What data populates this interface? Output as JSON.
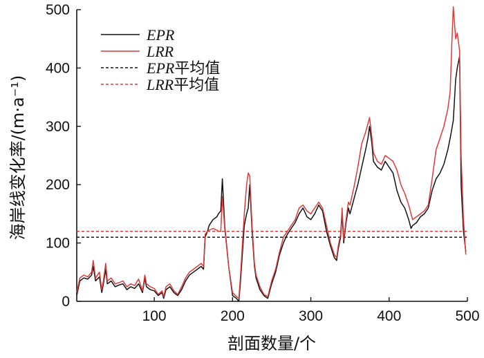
{
  "chart_data": {
    "type": "line",
    "xlabel": "剖面数量/个",
    "ylabel": "海岸线变化率/(m·a⁻¹)",
    "xlim": [
      1,
      500
    ],
    "ylim": [
      0,
      500
    ],
    "xticks": [
      "100",
      "200",
      "300",
      "400",
      "500"
    ],
    "yticks": [
      "0",
      "100",
      "200",
      "300",
      "400",
      "500"
    ],
    "legend_position": "top-left",
    "grid": false,
    "series": [
      {
        "name": "EPR",
        "style": "solid",
        "color": "#111111",
        "x": [
          1,
          5,
          10,
          15,
          20,
          22,
          25,
          30,
          33,
          35,
          38,
          40,
          45,
          50,
          55,
          60,
          65,
          70,
          75,
          80,
          85,
          88,
          90,
          95,
          100,
          105,
          110,
          112,
          115,
          120,
          125,
          130,
          135,
          140,
          145,
          150,
          155,
          160,
          163,
          165,
          168,
          170,
          175,
          180,
          182,
          185,
          187,
          190,
          195,
          200,
          205,
          208,
          210,
          215,
          218,
          220,
          222,
          225,
          228,
          230,
          235,
          240,
          245,
          250,
          255,
          260,
          265,
          270,
          275,
          280,
          285,
          290,
          295,
          300,
          305,
          310,
          315,
          320,
          325,
          330,
          333,
          335,
          338,
          340,
          342,
          345,
          348,
          350,
          355,
          360,
          365,
          370,
          373,
          375,
          378,
          380,
          385,
          390,
          395,
          400,
          405,
          410,
          415,
          420,
          425,
          428,
          430,
          435,
          440,
          445,
          450,
          455,
          460,
          465,
          470,
          475,
          478,
          480,
          482,
          485,
          487,
          490,
          492,
          495,
          498
        ],
        "y": [
          10,
          35,
          40,
          38,
          45,
          60,
          35,
          42,
          15,
          30,
          55,
          30,
          35,
          25,
          28,
          30,
          20,
          25,
          22,
          30,
          15,
          40,
          25,
          20,
          18,
          10,
          15,
          5,
          20,
          25,
          15,
          10,
          20,
          35,
          45,
          50,
          55,
          60,
          55,
          110,
          120,
          130,
          140,
          145,
          150,
          155,
          210,
          130,
          60,
          10,
          5,
          0,
          30,
          130,
          150,
          160,
          200,
          120,
          60,
          40,
          20,
          10,
          5,
          30,
          50,
          80,
          100,
          115,
          125,
          135,
          150,
          160,
          145,
          140,
          150,
          165,
          155,
          120,
          95,
          75,
          70,
          90,
          110,
          150,
          100,
          135,
          160,
          150,
          175,
          200,
          230,
          260,
          280,
          300,
          270,
          240,
          230,
          225,
          240,
          230,
          220,
          190,
          170,
          160,
          140,
          125,
          130,
          135,
          145,
          150,
          160,
          190,
          210,
          220,
          235,
          260,
          280,
          295,
          310,
          380,
          400,
          420,
          200,
          120,
          85
        ]
      },
      {
        "name": "LRR",
        "style": "solid",
        "color": "#d93a3a",
        "x": [
          1,
          5,
          10,
          15,
          20,
          22,
          25,
          30,
          33,
          35,
          38,
          40,
          45,
          50,
          55,
          60,
          65,
          70,
          75,
          80,
          85,
          88,
          90,
          95,
          100,
          105,
          110,
          112,
          115,
          120,
          125,
          130,
          135,
          140,
          145,
          150,
          155,
          160,
          163,
          165,
          168,
          170,
          175,
          180,
          182,
          185,
          187,
          190,
          195,
          200,
          205,
          208,
          210,
          215,
          218,
          220,
          222,
          225,
          228,
          230,
          235,
          240,
          245,
          250,
          255,
          260,
          265,
          270,
          275,
          280,
          285,
          290,
          295,
          300,
          305,
          310,
          315,
          320,
          325,
          330,
          333,
          335,
          338,
          340,
          342,
          345,
          348,
          350,
          355,
          360,
          365,
          370,
          373,
          375,
          378,
          380,
          385,
          390,
          395,
          400,
          405,
          410,
          415,
          420,
          425,
          428,
          430,
          435,
          440,
          445,
          450,
          455,
          460,
          465,
          470,
          475,
          478,
          480,
          482,
          485,
          487,
          490,
          492,
          495,
          498
        ],
        "y": [
          15,
          40,
          45,
          42,
          50,
          70,
          40,
          50,
          20,
          35,
          65,
          35,
          40,
          30,
          32,
          35,
          25,
          30,
          27,
          38,
          18,
          45,
          30,
          25,
          22,
          12,
          18,
          8,
          25,
          30,
          18,
          12,
          25,
          40,
          50,
          55,
          60,
          65,
          60,
          115,
          120,
          122,
          125,
          122,
          120,
          120,
          180,
          125,
          60,
          15,
          8,
          5,
          40,
          150,
          200,
          220,
          215,
          130,
          65,
          45,
          25,
          12,
          8,
          35,
          55,
          85,
          110,
          120,
          130,
          140,
          160,
          165,
          155,
          150,
          160,
          170,
          160,
          130,
          100,
          80,
          75,
          95,
          115,
          160,
          105,
          140,
          170,
          165,
          195,
          230,
          270,
          290,
          305,
          315,
          280,
          255,
          240,
          235,
          250,
          245,
          240,
          225,
          200,
          185,
          165,
          150,
          140,
          145,
          150,
          155,
          165,
          210,
          260,
          280,
          300,
          330,
          360,
          440,
          505,
          450,
          460,
          430,
          250,
          140,
          80
        ]
      },
      {
        "name": "EPR平均值",
        "style": "dashed",
        "color": "#111111",
        "x": [
          1,
          500
        ],
        "y": [
          110,
          110
        ]
      },
      {
        "name": "LRR平均值",
        "style": "dashed",
        "color": "#d93a3a",
        "x": [
          1,
          500
        ],
        "y": [
          120,
          120
        ]
      }
    ],
    "legend": [
      {
        "label_main": "EPR",
        "label_suffix": "",
        "style": "solid",
        "color": "#111111"
      },
      {
        "label_main": "LRR",
        "label_suffix": "",
        "style": "solid",
        "color": "#d93a3a"
      },
      {
        "label_main": "EPR",
        "label_suffix": "平均值",
        "style": "dashed",
        "color": "#111111"
      },
      {
        "label_main": "LRR",
        "label_suffix": "平均值",
        "style": "dashed",
        "color": "#d93a3a"
      }
    ]
  }
}
